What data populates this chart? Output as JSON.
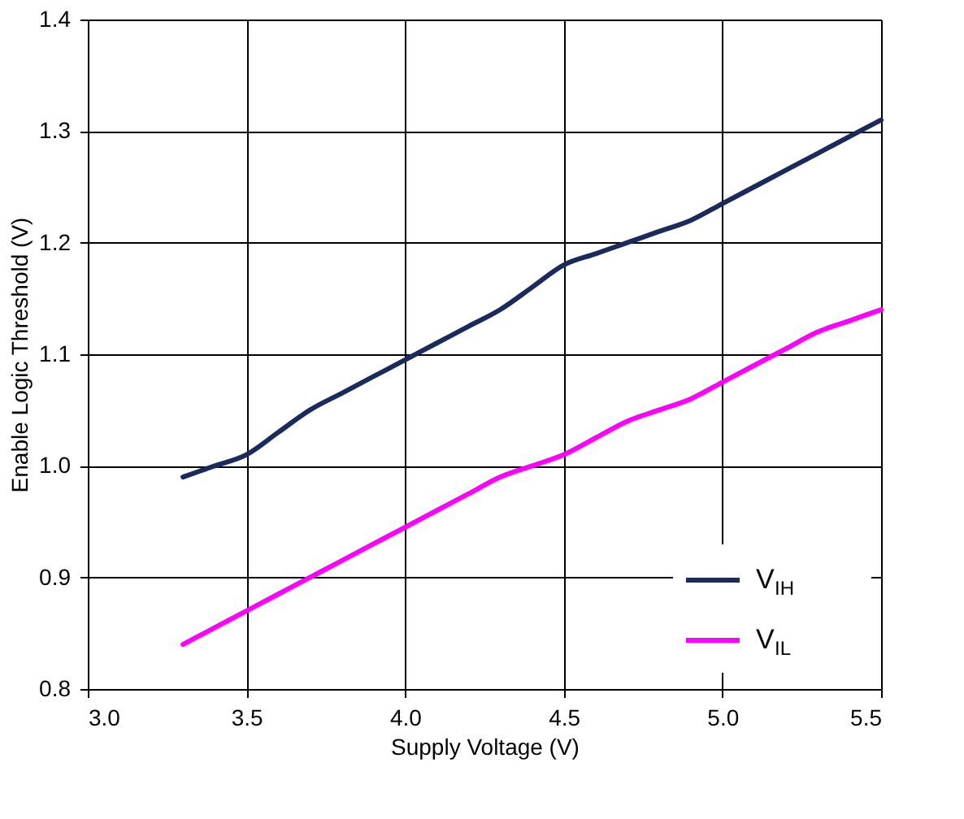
{
  "chart_data": {
    "type": "line",
    "xlabel": "Supply Voltage (V)",
    "ylabel": "Enable Logic Threshold (V)",
    "xlim": [
      3.0,
      5.5
    ],
    "xticks": [
      {
        "value": 3.0,
        "label": "3.0"
      },
      {
        "value": 3.5,
        "label": "3.5"
      },
      {
        "value": 4.0,
        "label": "4.0"
      },
      {
        "value": 4.5,
        "label": "4.5"
      },
      {
        "value": 5.0,
        "label": "5.0"
      },
      {
        "value": 5.5,
        "label": "5.5"
      }
    ],
    "ylim": [
      0.8,
      1.4
    ],
    "yticks": [
      0.8,
      0.9,
      {
        "value": 1.0,
        "label": "1.0"
      },
      1.1,
      1.2,
      1.3,
      1.4
    ],
    "x": [
      3.3,
      3.4,
      3.5,
      3.6,
      3.7,
      3.8,
      3.9,
      4.0,
      4.1,
      4.2,
      4.3,
      4.4,
      4.5,
      4.6,
      4.7,
      4.8,
      4.9,
      5.0,
      5.1,
      5.2,
      5.3,
      5.4,
      5.5
    ],
    "series": [
      {
        "name": "V$_{IH}$",
        "color": "#1b2a5e",
        "values": [
          0.99,
          1.0,
          1.01,
          1.03,
          1.05,
          1.065,
          1.08,
          1.095,
          1.11,
          1.125,
          1.14,
          1.16,
          1.18,
          1.19,
          1.2,
          1.21,
          1.22,
          1.235,
          1.25,
          1.265,
          1.28,
          1.295,
          1.31
        ]
      },
      {
        "name": "V$_{IL}$",
        "color": "#ff00ff",
        "values": [
          0.84,
          0.855,
          0.87,
          0.885,
          0.9,
          0.915,
          0.93,
          0.945,
          0.96,
          0.975,
          0.99,
          1.0,
          1.01,
          1.025,
          1.04,
          1.05,
          1.06,
          1.075,
          1.09,
          1.105,
          1.12,
          1.13,
          1.14
        ]
      }
    ],
    "grid": true,
    "legend": "bottom right",
    "marker": "none",
    "line_style": "solid"
  }
}
